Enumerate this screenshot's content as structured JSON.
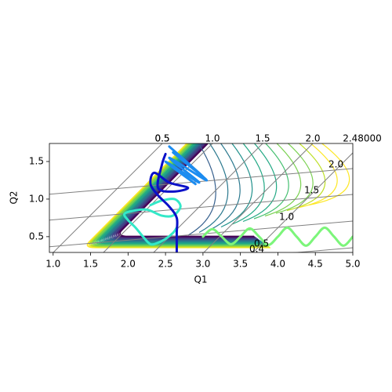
{
  "chart_data": {
    "type": "line",
    "x_label": "Q1",
    "y_label": "Q2",
    "xlim": [
      0.95,
      5.0
    ],
    "ylim": [
      0.29,
      1.74
    ],
    "xticks": [
      {
        "value": 1.0,
        "label": "1.0"
      },
      1.5,
      {
        "value": 2.0,
        "label": "2.0"
      },
      2.5,
      {
        "value": 3.0,
        "label": "3.0"
      },
      3.5,
      {
        "value": 4.0,
        "label": "4.0"
      },
      4.5,
      {
        "value": 5.0,
        "label": "5.0"
      }
    ],
    "yticks": [
      0.5,
      {
        "value": 1.0,
        "label": "1.0"
      },
      1.5
    ],
    "top_annotations": [
      "0.5",
      "0.5",
      "1.0",
      "1.5",
      "2.0",
      "2.48000"
    ],
    "right_annotations": [
      "2.0",
      "1.5",
      "1.0",
      "0.5",
      "0.4"
    ],
    "series": [
      {
        "color": "#7cf57a",
        "x": [
          3.0,
          3.125,
          3.25,
          3.375,
          3.5,
          3.625,
          3.75,
          3.875,
          4.0,
          4.125,
          4.25,
          4.375,
          4.5,
          4.625,
          4.75,
          4.875,
          5.0
        ],
        "values": [
          0.5,
          0.6,
          0.5,
          0.4,
          0.5,
          0.61,
          0.5,
          0.39,
          0.5,
          0.62,
          0.5,
          0.38,
          0.5,
          0.62,
          0.5,
          0.38,
          0.5
        ]
      },
      {
        "color": "#33e8c8",
        "x": [
          2.65,
          2.6,
          2.5,
          2.4,
          2.3,
          2.2,
          2.1,
          2.0,
          1.95,
          2.05,
          2.25,
          2.45,
          2.6,
          2.7,
          2.62,
          2.45,
          2.3
        ],
        "values": [
          0.62,
          0.55,
          0.47,
          0.42,
          0.4,
          0.5,
          0.62,
          0.72,
          0.8,
          0.84,
          0.86,
          0.78,
          0.78,
          0.9,
          1.0,
          0.98,
          0.92
        ]
      },
      {
        "color": "#0a10c8",
        "x": [
          2.65,
          2.65,
          2.65,
          2.55,
          2.4,
          2.3,
          2.35,
          2.55,
          2.8,
          2.6,
          2.4,
          2.45,
          2.5
        ],
        "values": [
          0.3,
          0.55,
          0.75,
          0.9,
          1.05,
          1.2,
          1.35,
          1.22,
          1.15,
          1.1,
          1.15,
          1.45,
          1.6
        ]
      },
      {
        "color": "#1c8cf0",
        "x": [
          2.55,
          3.0,
          2.6,
          3.05,
          2.55,
          2.95,
          2.5,
          2.9
        ],
        "values": [
          1.7,
          1.3,
          1.62,
          1.25,
          1.55,
          1.22,
          1.5,
          1.2
        ]
      }
    ]
  }
}
